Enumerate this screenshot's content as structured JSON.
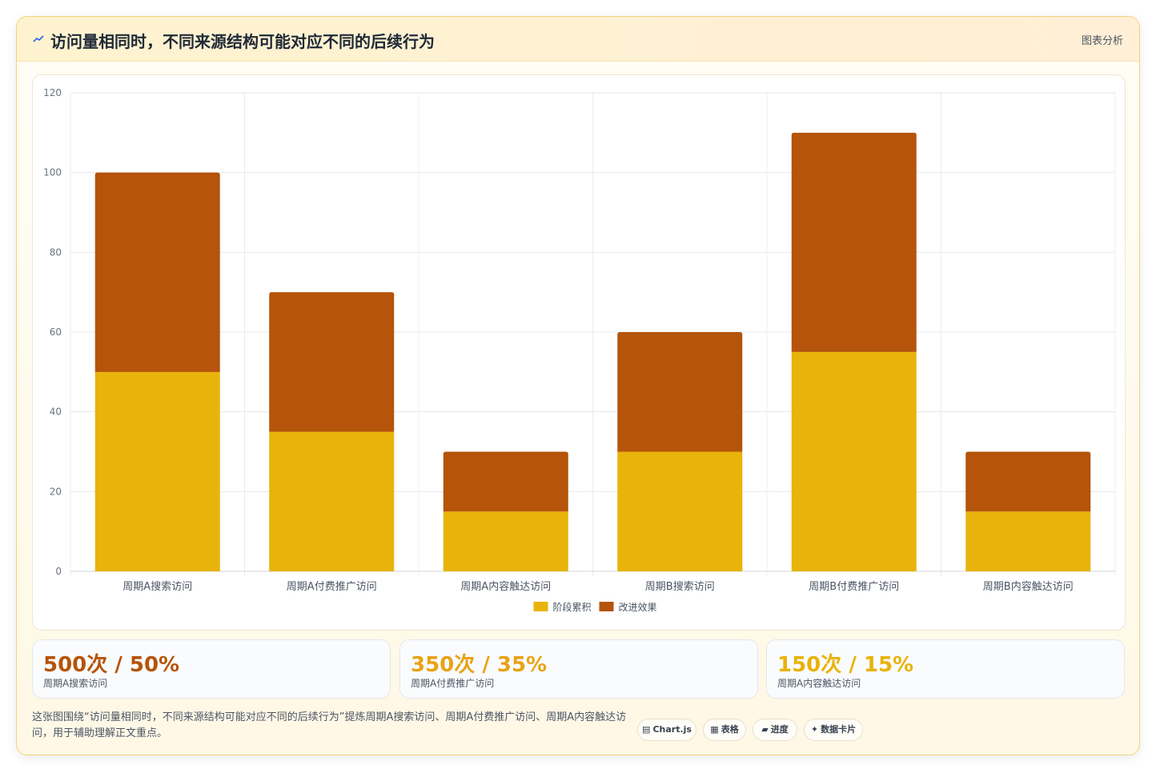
{
  "header": {
    "title": "访问量相同时，不同来源结构可能对应不同的后续行为",
    "tag": "图表分析",
    "icon": "trend-line-icon"
  },
  "chart_data": {
    "type": "bar",
    "stacked": true,
    "categories": [
      "周期A搜索访问",
      "周期A付费推广访问",
      "周期A内容触达访问",
      "周期B搜索访问",
      "周期B付费推广访问",
      "周期B内容触达访问"
    ],
    "series": [
      {
        "name": "阶段累积",
        "values": [
          50,
          35,
          15,
          30,
          55,
          15
        ],
        "color": "#e8b30a"
      },
      {
        "name": "改进效果",
        "values": [
          50,
          35,
          15,
          30,
          55,
          15
        ],
        "color": "#b5540a"
      }
    ],
    "ylim": [
      0,
      120
    ],
    "yticks": [
      0,
      20,
      40,
      60,
      80,
      100,
      120
    ],
    "grid": true,
    "legend": "bottom"
  },
  "stats": [
    {
      "value": "500次 / 50%",
      "label": "周期A搜索访问",
      "color": "#b5540a"
    },
    {
      "value": "350次 / 35%",
      "label": "周期A付费推广访问",
      "color": "#e8a317"
    },
    {
      "value": "150次 / 15%",
      "label": "周期A内容触达访问",
      "color": "#e8b30a"
    }
  ],
  "note": "这张图围绕“访问量相同时，不同来源结构可能对应不同的后续行为”提炼周期A搜索访问、周期A付费推广访问、周期A内容触达访问，用于辅助理解正文重点。",
  "badges": [
    {
      "icon": "▤",
      "label": "Chart.js"
    },
    {
      "icon": "▦",
      "label": "表格"
    },
    {
      "icon": "▰",
      "label": "进度"
    },
    {
      "icon": "✦",
      "label": "数据卡片"
    }
  ]
}
